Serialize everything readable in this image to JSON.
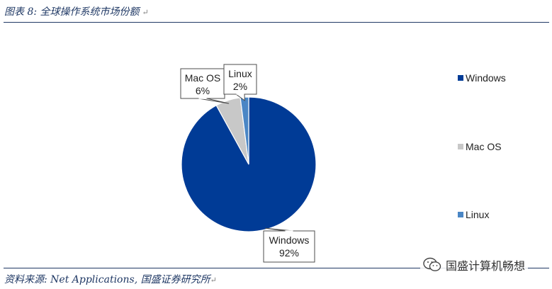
{
  "header": {
    "title": "图表 8: 全球操作系统市场份额",
    "mark": "↵"
  },
  "footer": {
    "source": "资料来源: Net Applications, 国盛证券研究所",
    "mark": "↵"
  },
  "watermark": {
    "text": "国盛计算机畅想",
    "icon": "wechat-icon"
  },
  "colors": {
    "windows": "#003b96",
    "mac": "#c8c8c8",
    "linux": "#4a86c5",
    "accent": "#1f3864"
  },
  "chart_data": {
    "type": "pie",
    "slices": [
      {
        "name": "Windows",
        "value": 92,
        "label": "92%",
        "color": "#003b96"
      },
      {
        "name": "Mac OS",
        "value": 6,
        "label": "6%",
        "color": "#c8c8c8"
      },
      {
        "name": "Linux",
        "value": 2,
        "label": "2%",
        "color": "#4a86c5"
      }
    ],
    "legend": {
      "placement": "right",
      "entries": [
        "Windows",
        "Mac OS",
        "Linux"
      ]
    }
  }
}
